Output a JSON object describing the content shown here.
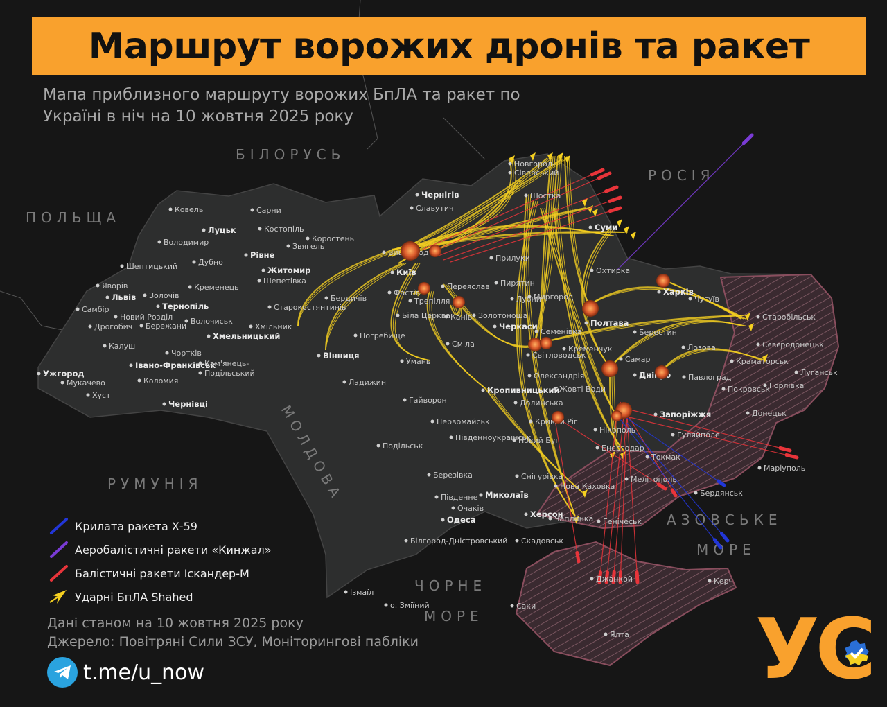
{
  "header": {
    "title": "Маршрут ворожих дронів та ракет",
    "subtitle": "Мапа приблизного маршруту ворожих БпЛА та ракет по Україні в ніч на 10 жовтня 2025 року"
  },
  "colors": {
    "accent": "#f9a12d",
    "drone": "#f5d020",
    "iskander": "#e8343a",
    "kh59": "#2236d8",
    "kinzhal": "#7a3bd6",
    "occupied": "#6b3a48",
    "explosion": "#e0662a"
  },
  "countries": [
    "БІЛОРУСЬ",
    "РОСІЯ",
    "ПОЛЬЩА",
    "РУМУНІЯ",
    "МОЛДОВА",
    "ЧОРНЕ",
    "МОРЕ",
    "АЗОВСЬКЕ",
    "МОРЕ"
  ],
  "cities": [
    {
      "name": "Ковель"
    },
    {
      "name": "Луцьк",
      "bold": true
    },
    {
      "name": "Володимир"
    },
    {
      "name": "Сарни"
    },
    {
      "name": "Костопіль"
    },
    {
      "name": "Рівне",
      "bold": true
    },
    {
      "name": "Звягель"
    },
    {
      "name": "Коростень"
    },
    {
      "name": "Дубно"
    },
    {
      "name": "Шептицький"
    },
    {
      "name": "Житомир",
      "bold": true
    },
    {
      "name": "Шепетівка"
    },
    {
      "name": "Яворів"
    },
    {
      "name": "Львів",
      "bold": true
    },
    {
      "name": "Золочів"
    },
    {
      "name": "Кременець"
    },
    {
      "name": "Бердичів"
    },
    {
      "name": "Старокостянтинів"
    },
    {
      "name": "Тернопіль",
      "bold": true
    },
    {
      "name": "Самбір"
    },
    {
      "name": "Новий Розділ"
    },
    {
      "name": "Волочиськ"
    },
    {
      "name": "Хмельницький",
      "bold": true
    },
    {
      "name": "Дрогобич"
    },
    {
      "name": "Бережани"
    },
    {
      "name": "Хмільник"
    },
    {
      "name": "Погребище"
    },
    {
      "name": "Вінниця",
      "bold": true
    },
    {
      "name": "Калуш"
    },
    {
      "name": "Чортків"
    },
    {
      "name": "Івано-Франківськ",
      "bold": true
    },
    {
      "name": "Кам'янець-"
    },
    {
      "name": "Подільський"
    },
    {
      "name": "Ужгород",
      "bold": true
    },
    {
      "name": "Мукачево"
    },
    {
      "name": "Коломия"
    },
    {
      "name": "Ладижин"
    },
    {
      "name": "Хуст"
    },
    {
      "name": "Чернівці",
      "bold": true
    },
    {
      "name": "Київ",
      "bold": true
    },
    {
      "name": "Чернігів",
      "bold": true
    },
    {
      "name": "Славутич"
    },
    {
      "name": "Фастів"
    },
    {
      "name": "Трепілля"
    },
    {
      "name": "Біла Церква"
    },
    {
      "name": "Переяслав"
    },
    {
      "name": "Канів"
    },
    {
      "name": "Прилуки"
    },
    {
      "name": "Пирятин"
    },
    {
      "name": "Черкаси",
      "bold": true
    },
    {
      "name": "Золотоноша"
    },
    {
      "name": "Сміла"
    },
    {
      "name": "Умань"
    },
    {
      "name": "Гайворон"
    },
    {
      "name": "Новгород-"
    },
    {
      "name": "Сіверський"
    },
    {
      "name": "Шостка"
    },
    {
      "name": "Суми",
      "bold": true
    },
    {
      "name": "Охтирка"
    },
    {
      "name": "Харків",
      "bold": true
    },
    {
      "name": "Чугуїв"
    },
    {
      "name": "Полтава",
      "bold": true
    },
    {
      "name": "Лубни"
    },
    {
      "name": "Миргород"
    },
    {
      "name": "Світловодськ"
    },
    {
      "name": "Кременчук"
    },
    {
      "name": "Олександрія"
    },
    {
      "name": "Кропивницький",
      "bold": true
    },
    {
      "name": "Долинська"
    },
    {
      "name": "Жовті Води"
    },
    {
      "name": "Кривий Ріг"
    },
    {
      "name": "Дніпро",
      "bold": true
    },
    {
      "name": "Самар"
    },
    {
      "name": "Павлоград"
    },
    {
      "name": "Лозова"
    },
    {
      "name": "Берестин"
    },
    {
      "name": "Краматорськ"
    },
    {
      "name": "Покровськ"
    },
    {
      "name": "Запоріжжя",
      "bold": true
    },
    {
      "name": "Нікополь"
    },
    {
      "name": "Гуляйполе"
    },
    {
      "name": "Первомайськ"
    },
    {
      "name": "Подільськ"
    },
    {
      "name": "Південноукраїнськ"
    },
    {
      "name": "Новий Буг"
    },
    {
      "name": "Березівка"
    },
    {
      "name": "Снігурівка"
    },
    {
      "name": "Миколаїв",
      "bold": true
    },
    {
      "name": "Південне"
    },
    {
      "name": "Очаків"
    },
    {
      "name": "Одеса",
      "bold": true
    },
    {
      "name": "Херсон",
      "bold": true
    },
    {
      "name": "Скадовськ"
    },
    {
      "name": "Білгород-Дністровський"
    },
    {
      "name": "Ізмаїл"
    },
    {
      "name": "о. Зміїний"
    },
    {
      "name": "Маріуполь"
    },
    {
      "name": "Бердянськ"
    },
    {
      "name": "Мелітополь"
    },
    {
      "name": "Енергодар"
    },
    {
      "name": "Токмак"
    },
    {
      "name": "Нова Каховка"
    },
    {
      "name": "Чаплинка"
    },
    {
      "name": "Генічеськ"
    },
    {
      "name": "Джанкой"
    },
    {
      "name": "Керч"
    },
    {
      "name": "Саки"
    },
    {
      "name": "Ялта"
    },
    {
      "name": "Старобільськ"
    },
    {
      "name": "Сєвєродонецьк"
    },
    {
      "name": "Луганськ"
    },
    {
      "name": "Горлівка"
    },
    {
      "name": "Донецьк"
    },
    {
      "name": "Семенівка"
    },
    {
      "name": "Вишгород"
    }
  ],
  "legend": [
    {
      "label": "Крилата ракета Х-59",
      "color": "#2236d8",
      "icon": "missile-icon"
    },
    {
      "label": "Аеробалістичні ракети «Кинжал»",
      "color": "#7a3bd6",
      "icon": "missile-icon"
    },
    {
      "label": "Балістичні ракети Іскандер-М",
      "color": "#e8343a",
      "icon": "missile-icon"
    },
    {
      "label": "Ударні БпЛА Shahed",
      "color": "#f5d020",
      "icon": "drone-icon"
    }
  ],
  "footer": {
    "date_note": "Дані станом на 10 жовтня 2025 року",
    "source": "Джерело: Повітряні Сили ЗСУ, Моніторингові пабліки",
    "telegram": "t.me/u_now"
  },
  "logo": {
    "text": "УС"
  }
}
